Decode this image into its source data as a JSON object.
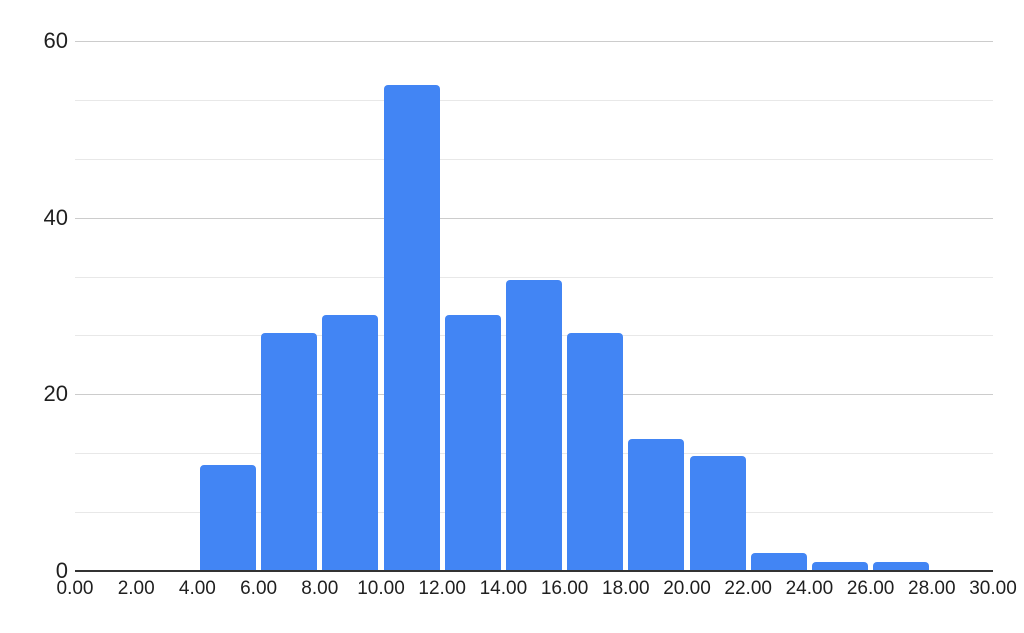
{
  "chart_data": {
    "type": "bar",
    "subtype": "histogram",
    "title": "",
    "xlabel": "",
    "ylabel": "",
    "xlim": [
      0,
      30
    ],
    "ylim": [
      0,
      60
    ],
    "grid": "on",
    "legend_position": "none",
    "y_ticks": [
      0,
      20,
      40,
      60
    ],
    "y_tick_labels": [
      "0",
      "20",
      "40",
      "60"
    ],
    "y_minor_ticks": [
      6.67,
      13.33,
      26.67,
      33.33,
      46.67,
      53.33
    ],
    "x_ticks": [
      0,
      2,
      4,
      6,
      8,
      10,
      12,
      14,
      16,
      18,
      20,
      22,
      24,
      26,
      28,
      30
    ],
    "x_tick_labels": [
      "0.00",
      "2.00",
      "4.00",
      "6.00",
      "8.00",
      "10.00",
      "12.00",
      "14.00",
      "16.00",
      "18.00",
      "20.00",
      "22.00",
      "24.00",
      "26.00",
      "28.00",
      "30.00"
    ],
    "bin_width": 2,
    "bins": [
      {
        "start": 0,
        "end": 2,
        "count": 0
      },
      {
        "start": 2,
        "end": 4,
        "count": 0
      },
      {
        "start": 4,
        "end": 6,
        "count": 12
      },
      {
        "start": 6,
        "end": 8,
        "count": 27
      },
      {
        "start": 8,
        "end": 10,
        "count": 29
      },
      {
        "start": 10,
        "end": 12,
        "count": 55
      },
      {
        "start": 12,
        "end": 14,
        "count": 29
      },
      {
        "start": 14,
        "end": 16,
        "count": 33
      },
      {
        "start": 16,
        "end": 18,
        "count": 27
      },
      {
        "start": 18,
        "end": 20,
        "count": 15
      },
      {
        "start": 20,
        "end": 22,
        "count": 13
      },
      {
        "start": 22,
        "end": 24,
        "count": 2
      },
      {
        "start": 24,
        "end": 26,
        "count": 1
      },
      {
        "start": 26,
        "end": 28,
        "count": 1
      },
      {
        "start": 28,
        "end": 30,
        "count": 0
      }
    ],
    "colors": {
      "bar": "#4285f4",
      "background": "#ffffff",
      "gridline_major": "#cccccc",
      "gridline_minor": "#e8e8e8",
      "axis_line": "#333333",
      "tick_text": "#1f1f1f"
    }
  }
}
